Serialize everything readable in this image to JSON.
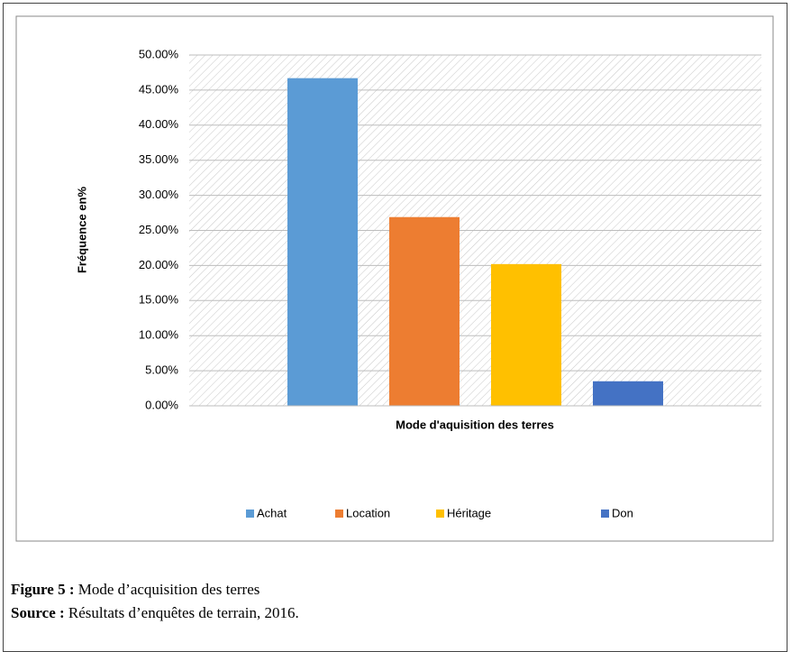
{
  "chart_data": {
    "type": "bar",
    "y_label": "Fréquence en%",
    "x_label": "Mode d'aquisition des terres",
    "categories": [
      null
    ],
    "series": [
      {
        "name": "Achat",
        "color": "#5b9bd5",
        "values": [
          46.7
        ]
      },
      {
        "name": "Location",
        "color": "#ed7d31",
        "values": [
          26.9
        ]
      },
      {
        "name": "Héritage",
        "color": "#ffc000",
        "values": [
          20.2
        ]
      },
      {
        "name": "Don",
        "color": "#4472c4",
        "values": [
          3.5
        ]
      }
    ],
    "ylim": [
      0,
      50
    ],
    "yticks": [
      {
        "value": 0,
        "label": "0.00%"
      },
      {
        "value": 5,
        "label": "5.00%"
      },
      {
        "value": 10,
        "label": "10.00%"
      },
      {
        "value": 15,
        "label": "15.00%"
      },
      {
        "value": 20,
        "label": "20.00%"
      },
      {
        "value": 25,
        "label": "25.00%"
      },
      {
        "value": 30,
        "label": "30.00%"
      },
      {
        "value": 35,
        "label": "35.00%"
      },
      {
        "value": 40,
        "label": "40.00%"
      },
      {
        "value": 45,
        "label": "45.00%"
      },
      {
        "value": 50,
        "label": "50.00%"
      }
    ],
    "grid": true,
    "legend": "bottom"
  },
  "caption": {
    "figure_label": "Figure 5 :",
    "figure_text": "Mode d’acquisition des terres",
    "source_label": "Source :",
    "source_text": "Résultats d’enquêtes de terrain, 2016."
  }
}
